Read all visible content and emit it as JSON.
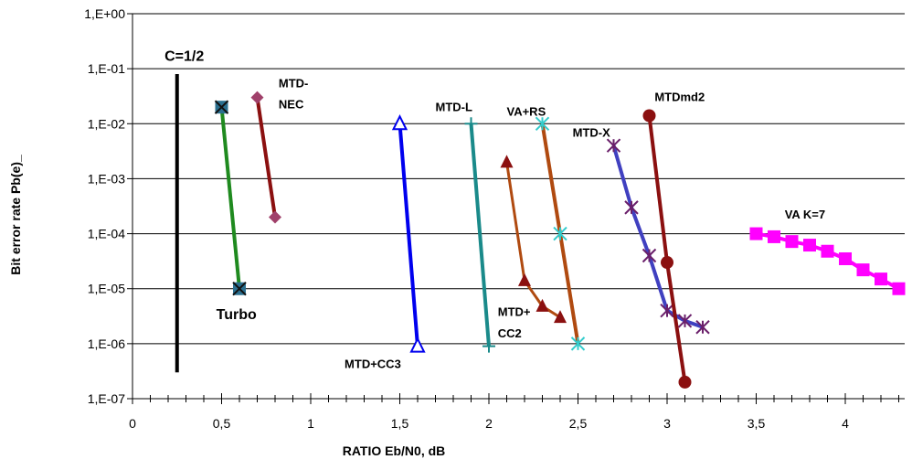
{
  "chart_data": {
    "type": "line",
    "title": "",
    "xlabel": "RATIO  Eb/N0, dB",
    "ylabel": "Bit error rate  Pb(e)_",
    "xlim": [
      0,
      4.3
    ],
    "ylim": [
      1e-07,
      1
    ],
    "y_scale": "log",
    "grid": "horizontal major",
    "x_ticks": [
      {
        "value": 0,
        "label": "0"
      },
      {
        "value": 0.5,
        "label": "0,5"
      },
      {
        "value": 1,
        "label": "1"
      },
      {
        "value": 1.5,
        "label": "1,5"
      },
      {
        "value": 2,
        "label": "2"
      },
      {
        "value": 2.5,
        "label": "2,5"
      },
      {
        "value": 3,
        "label": "3"
      },
      {
        "value": 3.5,
        "label": "3,5"
      },
      {
        "value": 4,
        "label": "4"
      }
    ],
    "y_ticks": [
      {
        "value": 1,
        "label": "1,E+00"
      },
      {
        "value": 0.1,
        "label": "1,E-01"
      },
      {
        "value": 0.01,
        "label": "1,E-02"
      },
      {
        "value": 0.001,
        "label": "1,E-03"
      },
      {
        "value": 0.0001,
        "label": "1,E-04"
      },
      {
        "value": 1e-05,
        "label": "1,E-05"
      },
      {
        "value": 1e-06,
        "label": "1,E-06"
      },
      {
        "value": 1e-07,
        "label": "1,E-07"
      }
    ],
    "series": [
      {
        "name": "C=1/2",
        "color": "#000000",
        "marker": "none",
        "width": 4,
        "points": [
          [
            0.25,
            0.08
          ],
          [
            0.25,
            3e-07
          ]
        ]
      },
      {
        "name": "Turbo",
        "color": "#1f8a1f",
        "marker": "box-x",
        "marker_color": "#2a6f8f",
        "width": 4,
        "points": [
          [
            0.5,
            0.02
          ],
          [
            0.6,
            1e-05
          ]
        ]
      },
      {
        "name": "MTD-NEC",
        "color": "#8b1010",
        "marker": "diamond",
        "marker_color": "#a0406a",
        "width": 4,
        "points": [
          [
            0.7,
            0.03
          ],
          [
            0.8,
            0.0002
          ]
        ]
      },
      {
        "name": "MTD+CC3",
        "color": "#0000ee",
        "marker": "triangle-open",
        "marker_color": "#0000ee",
        "width": 4,
        "points": [
          [
            1.5,
            0.01
          ],
          [
            1.6,
            9e-07
          ]
        ]
      },
      {
        "name": "MTD-L",
        "color": "#1a8a8a",
        "marker": "plus",
        "marker_color": "#1a8a8a",
        "width": 4,
        "points": [
          [
            1.9,
            0.01
          ],
          [
            2.0,
            9e-07
          ]
        ]
      },
      {
        "name": "MTD+CC2",
        "color": "#b04a10",
        "marker": "triangle",
        "marker_color": "#8b1010",
        "width": 3,
        "points": [
          [
            2.1,
            0.002
          ],
          [
            2.2,
            1.4e-05
          ],
          [
            2.3,
            4.8e-06
          ],
          [
            2.4,
            3e-06
          ]
        ]
      },
      {
        "name": "VA+RS",
        "color": "#b04a10",
        "marker": "star",
        "marker_color": "#33cccc",
        "width": 4,
        "points": [
          [
            2.3,
            0.01
          ],
          [
            2.4,
            0.0001
          ],
          [
            2.5,
            1e-06
          ]
        ]
      },
      {
        "name": "MTD-X",
        "color": "#4040c0",
        "marker": "star",
        "marker_color": "#6a1f6a",
        "width": 4,
        "points": [
          [
            2.7,
            0.004
          ],
          [
            2.8,
            0.0003
          ],
          [
            2.9,
            4e-05
          ],
          [
            3.0,
            4e-06
          ],
          [
            3.1,
            2.6e-06
          ],
          [
            3.2,
            2e-06
          ]
        ]
      },
      {
        "name": "MTDmd2",
        "color": "#8b1010",
        "marker": "circle",
        "marker_color": "#8b1010",
        "width": 4,
        "points": [
          [
            2.9,
            0.014
          ],
          [
            3.0,
            3e-05
          ],
          [
            3.1,
            2e-07
          ]
        ]
      },
      {
        "name": "VA  K=7",
        "color": "#ff00ff",
        "marker": "square",
        "marker_color": "#ff00ff",
        "width": 4,
        "points": [
          [
            3.5,
            0.0001
          ],
          [
            3.6,
            8.8e-05
          ],
          [
            3.7,
            7.2e-05
          ],
          [
            3.8,
            6.2e-05
          ],
          [
            3.9,
            4.8e-05
          ],
          [
            4.0,
            3.5e-05
          ],
          [
            4.1,
            2.2e-05
          ],
          [
            4.2,
            1.5e-05
          ],
          [
            4.3,
            1e-05
          ]
        ]
      }
    ],
    "annotations": [
      {
        "text": "C=1/2",
        "x": 0.18,
        "y": 0.14,
        "size": 16
      },
      {
        "text": "Turbo",
        "x": 0.47,
        "y": 2.8e-06,
        "size": 16
      },
      {
        "text": "MTD-",
        "x": 0.82,
        "y": 0.046,
        "size": 13
      },
      {
        "text": "NEC",
        "x": 0.82,
        "y": 0.019,
        "size": 13
      },
      {
        "text": "MTD-L",
        "x": 1.7,
        "y": 0.017,
        "size": 13
      },
      {
        "text": "VA+RS",
        "x": 2.1,
        "y": 0.014,
        "size": 13
      },
      {
        "text": "MTD-X",
        "x": 2.47,
        "y": 0.0058,
        "size": 13
      },
      {
        "text": "MTDmd2",
        "x": 2.93,
        "y": 0.026,
        "size": 13
      },
      {
        "text": "VA  K=7",
        "x": 3.66,
        "y": 0.00019,
        "size": 13
      },
      {
        "text": "MTD+",
        "x": 2.05,
        "y": 3.2e-06,
        "size": 13
      },
      {
        "text": "CC2",
        "x": 2.05,
        "y": 1.3e-06,
        "size": 13
      },
      {
        "text": "MTD+CC3",
        "x": 1.19,
        "y": 3.6e-07,
        "size": 13
      }
    ]
  }
}
